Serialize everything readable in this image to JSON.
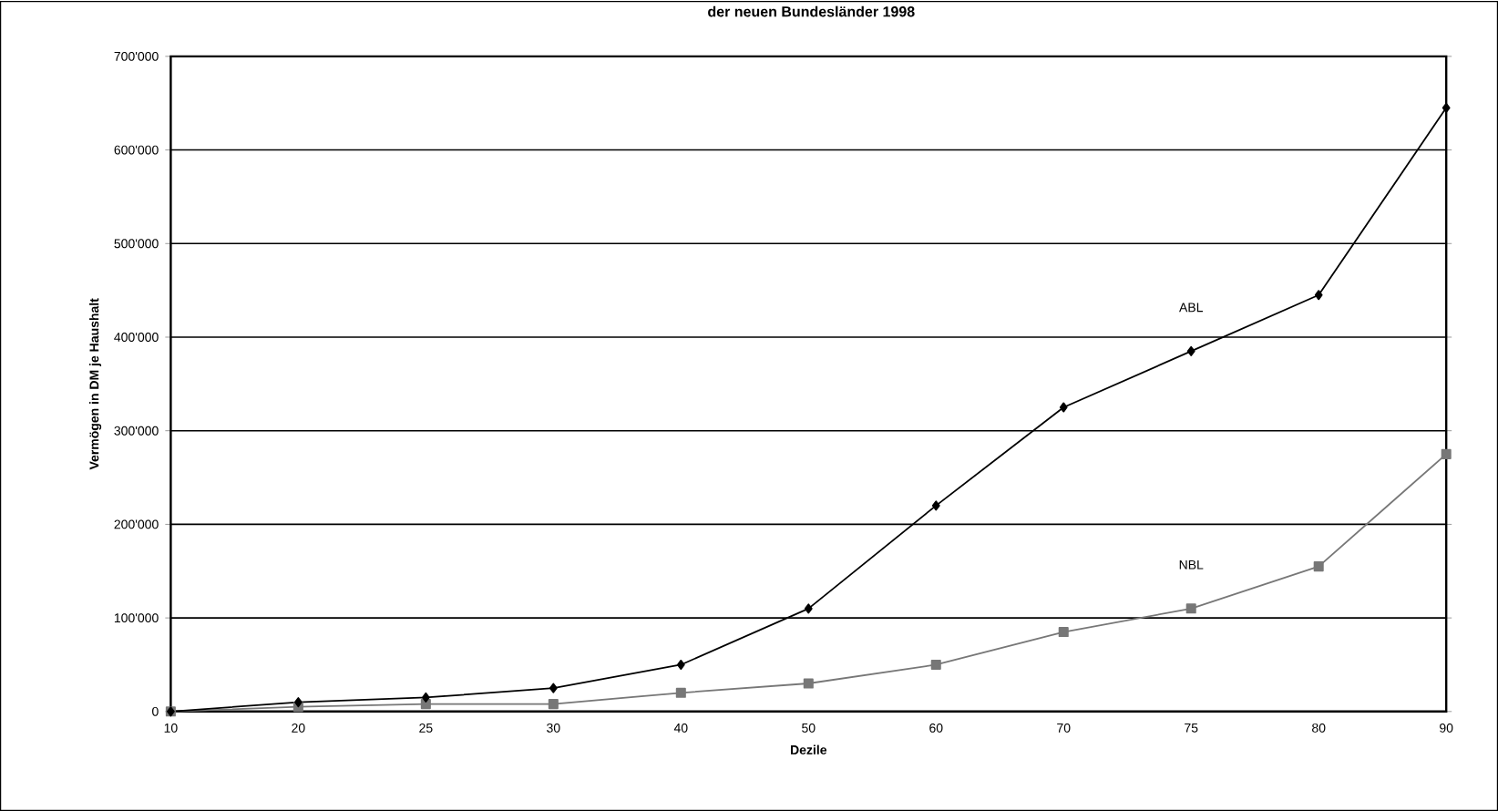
{
  "chart_data": {
    "type": "line",
    "title": "der neuen Bundesländer 1998",
    "xlabel": "Dezile",
    "ylabel": "Vermögen in DM je Haushalt",
    "categories": [
      "10",
      "20",
      "25",
      "30",
      "40",
      "50",
      "60",
      "70",
      "75",
      "80",
      "90"
    ],
    "series": [
      {
        "name": "ABL",
        "color": "#000000",
        "marker": "diamond",
        "values": [
          0,
          10000,
          15000,
          25000,
          50000,
          110000,
          220000,
          325000,
          385000,
          445000,
          645000
        ]
      },
      {
        "name": "NBL",
        "color": "#777777",
        "marker": "square",
        "values": [
          0,
          5000,
          8000,
          8000,
          20000,
          30000,
          50000,
          85000,
          110000,
          155000,
          275000
        ]
      }
    ],
    "ylim": [
      0,
      700000
    ],
    "yticks": [
      {
        "value": 0,
        "label": "0"
      },
      {
        "value": 100000,
        "label": "100'000"
      },
      {
        "value": 200000,
        "label": "200'000"
      },
      {
        "value": 300000,
        "label": "300'000"
      },
      {
        "value": 400000,
        "label": "400'000"
      },
      {
        "value": 500000,
        "label": "500'000"
      },
      {
        "value": 600000,
        "label": "600'000"
      },
      {
        "value": 700000,
        "label": "700'000"
      }
    ],
    "grid": "y",
    "line_style": "solid"
  }
}
